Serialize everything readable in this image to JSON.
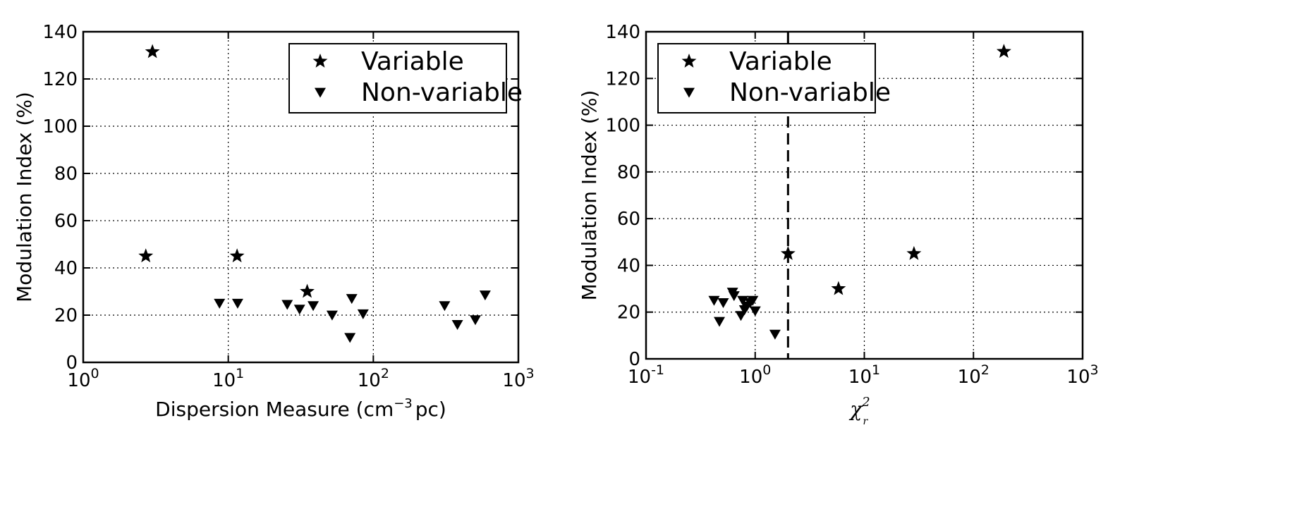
{
  "chart_data": [
    {
      "type": "scatter",
      "xscale": "log",
      "xlim": [
        1,
        1000
      ],
      "ylim": [
        0,
        140
      ],
      "xlabel_main": "Dispersion Measure (cm",
      "xlabel_sup": "−3",
      "xlabel_tail": "pc)",
      "ylabel": "Modulation Index (%)",
      "xticks": [
        {
          "value": 1,
          "base": "10",
          "exp": "0"
        },
        {
          "value": 10,
          "base": "10",
          "exp": "1"
        },
        {
          "value": 100,
          "base": "10",
          "exp": "2"
        },
        {
          "value": 1000,
          "base": "10",
          "exp": "3"
        }
      ],
      "yticks": [
        0,
        20,
        40,
        60,
        80,
        100,
        120,
        140
      ],
      "grid": true,
      "legend_position": "top-right",
      "series": [
        {
          "name": "Variable",
          "marker": "star",
          "points": [
            [
              3.0,
              131.5
            ],
            [
              2.7,
              45
            ],
            [
              11.5,
              45
            ],
            [
              35,
              30
            ]
          ]
        },
        {
          "name": "Non-variable",
          "marker": "triangle-down",
          "points": [
            [
              8.7,
              25
            ],
            [
              11.6,
              25
            ],
            [
              25.5,
              24.5
            ],
            [
              31,
              22.5
            ],
            [
              38.5,
              24
            ],
            [
              52,
              20
            ],
            [
              69,
              10.5
            ],
            [
              71,
              27
            ],
            [
              85,
              20.5
            ],
            [
              310,
              24
            ],
            [
              380,
              16
            ],
            [
              505,
              18
            ],
            [
              590,
              28.5
            ]
          ]
        }
      ]
    },
    {
      "type": "scatter",
      "xscale": "log",
      "xlim": [
        0.1,
        1000
      ],
      "ylim": [
        0,
        140
      ],
      "xlabel_main": "χ",
      "xlabel_sup": "2",
      "xlabel_sub": "r",
      "ylabel": "Modulation Index (%)",
      "xticks": [
        {
          "value": 0.1,
          "base": "10",
          "exp": "-1"
        },
        {
          "value": 1,
          "base": "10",
          "exp": "0"
        },
        {
          "value": 10,
          "base": "10",
          "exp": "1"
        },
        {
          "value": 100,
          "base": "10",
          "exp": "2"
        },
        {
          "value": 1000,
          "base": "10",
          "exp": "3"
        }
      ],
      "yticks": [
        0,
        20,
        40,
        60,
        80,
        100,
        120,
        140
      ],
      "grid": true,
      "threshold_x": 2.0,
      "legend_position": "top-left",
      "series": [
        {
          "name": "Variable",
          "marker": "star",
          "points": [
            [
              190,
              131.5
            ],
            [
              2.0,
              45
            ],
            [
              28.5,
              45
            ],
            [
              5.8,
              30
            ]
          ]
        },
        {
          "name": "Non-variable",
          "marker": "triangle-down",
          "points": [
            [
              0.42,
              25
            ],
            [
              0.47,
              16
            ],
            [
              0.51,
              24
            ],
            [
              0.62,
              28.5
            ],
            [
              0.64,
              27
            ],
            [
              0.74,
              18.5
            ],
            [
              0.77,
              25
            ],
            [
              0.8,
              21
            ],
            [
              0.84,
              22.5
            ],
            [
              0.9,
              24
            ],
            [
              0.95,
              25
            ],
            [
              1.0,
              20.5
            ],
            [
              1.52,
              10.5
            ]
          ]
        }
      ]
    }
  ]
}
